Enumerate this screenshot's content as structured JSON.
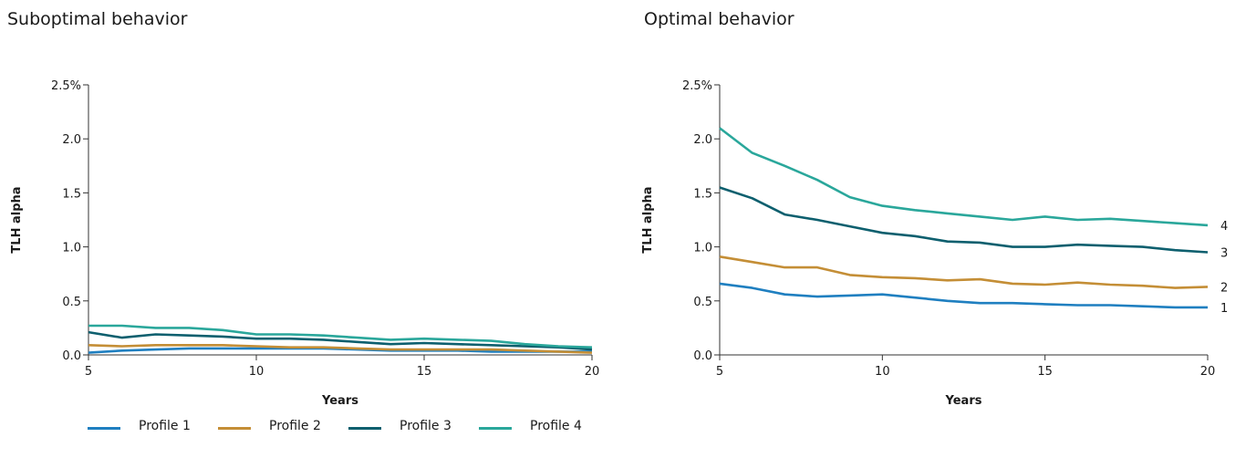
{
  "panels": {
    "left_title": "Suboptimal behavior",
    "right_title": "Optimal behavior"
  },
  "legend": {
    "items": [
      {
        "label": "Profile 1",
        "color": "#1f7fc0"
      },
      {
        "label": "Profile 2",
        "color": "#c48e36"
      },
      {
        "label": "Profile 3",
        "color": "#0d5f6e"
      },
      {
        "label": "Profile 4",
        "color": "#2aa79b"
      }
    ]
  },
  "chart_data": [
    {
      "type": "line",
      "title": "Suboptimal behavior",
      "xlabel": "Years",
      "ylabel": "TLH alpha",
      "xlim": [
        5,
        20
      ],
      "ylim": [
        0,
        2.5
      ],
      "x_ticks": [
        "5",
        "10",
        "15",
        "20"
      ],
      "y_ticks": [
        "0.0",
        "0.5",
        "1.0",
        "1.5",
        "2.0",
        "2.5%"
      ],
      "x": [
        5,
        6,
        7,
        8,
        9,
        10,
        11,
        12,
        13,
        14,
        15,
        16,
        17,
        18,
        19,
        20
      ],
      "series": [
        {
          "name": "Profile 1",
          "color": "#1f7fc0",
          "values": [
            0.02,
            0.04,
            0.05,
            0.06,
            0.06,
            0.06,
            0.06,
            0.06,
            0.05,
            0.04,
            0.04,
            0.04,
            0.03,
            0.03,
            0.03,
            0.03
          ]
        },
        {
          "name": "Profile 2",
          "color": "#c48e36",
          "values": [
            0.09,
            0.08,
            0.09,
            0.09,
            0.09,
            0.08,
            0.07,
            0.07,
            0.06,
            0.05,
            0.05,
            0.05,
            0.05,
            0.04,
            0.03,
            0.02
          ]
        },
        {
          "name": "Profile 3",
          "color": "#0d5f6e",
          "values": [
            0.21,
            0.16,
            0.19,
            0.18,
            0.17,
            0.15,
            0.15,
            0.14,
            0.12,
            0.1,
            0.11,
            0.1,
            0.09,
            0.08,
            0.07,
            0.05
          ]
        },
        {
          "name": "Profile 4",
          "color": "#2aa79b",
          "values": [
            0.27,
            0.27,
            0.25,
            0.25,
            0.23,
            0.19,
            0.19,
            0.18,
            0.16,
            0.14,
            0.15,
            0.14,
            0.13,
            0.1,
            0.08,
            0.07
          ]
        }
      ],
      "legend_position": "bottom"
    },
    {
      "type": "line",
      "title": "Optimal behavior",
      "xlabel": "Years",
      "ylabel": "TLH alpha",
      "xlim": [
        5,
        20
      ],
      "ylim": [
        0,
        2.5
      ],
      "x_ticks": [
        "5",
        "10",
        "15",
        "20"
      ],
      "y_ticks": [
        "0.0",
        "0.5",
        "1.0",
        "1.5",
        "2.0",
        "2.5%"
      ],
      "x": [
        5,
        6,
        7,
        8,
        9,
        10,
        11,
        12,
        13,
        14,
        15,
        16,
        17,
        18,
        19,
        20
      ],
      "series": [
        {
          "label": "1",
          "color": "#1f7fc0",
          "values": [
            0.66,
            0.62,
            0.56,
            0.54,
            0.55,
            0.56,
            0.53,
            0.5,
            0.48,
            0.48,
            0.47,
            0.46,
            0.46,
            0.45,
            0.44,
            0.44
          ]
        },
        {
          "label": "2",
          "color": "#c48e36",
          "values": [
            0.91,
            0.86,
            0.81,
            0.81,
            0.74,
            0.72,
            0.71,
            0.69,
            0.7,
            0.66,
            0.65,
            0.67,
            0.65,
            0.64,
            0.62,
            0.63
          ]
        },
        {
          "label": "3",
          "color": "#0d5f6e",
          "values": [
            1.55,
            1.45,
            1.3,
            1.25,
            1.19,
            1.13,
            1.1,
            1.05,
            1.04,
            1.0,
            1.0,
            1.02,
            1.01,
            1.0,
            0.97,
            0.95
          ]
        },
        {
          "label": "4",
          "color": "#2aa79b",
          "values": [
            2.1,
            1.87,
            1.75,
            1.62,
            1.46,
            1.38,
            1.34,
            1.31,
            1.28,
            1.25,
            1.28,
            1.25,
            1.26,
            1.24,
            1.22,
            1.2
          ]
        }
      ],
      "legend_position": "right end labels"
    }
  ]
}
